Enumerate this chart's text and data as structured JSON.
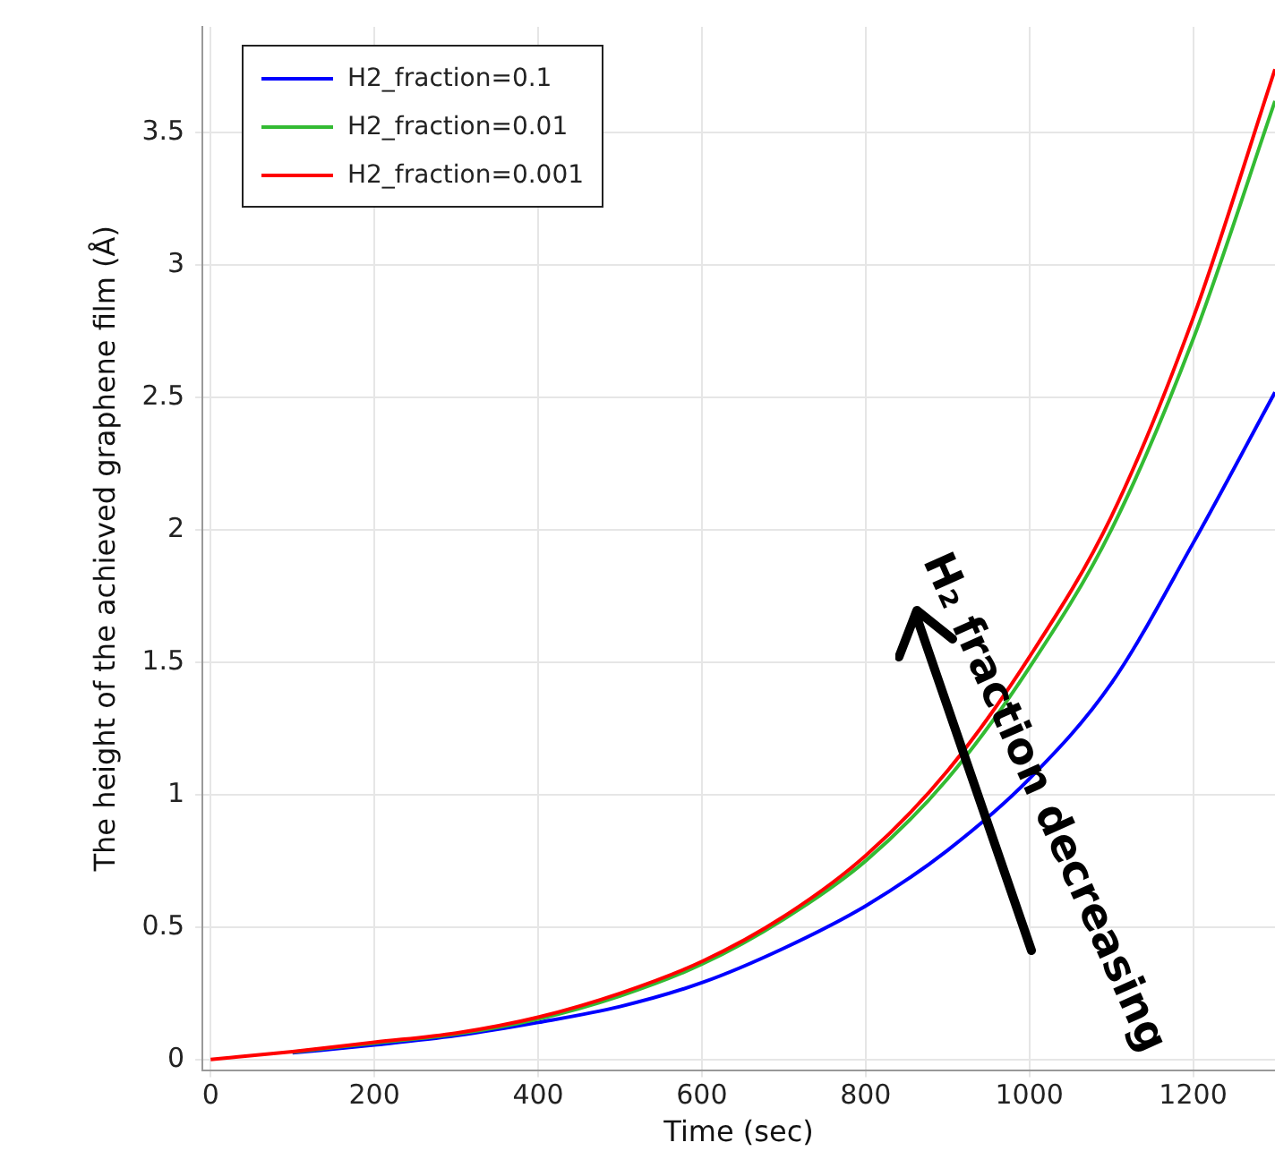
{
  "chart_data": {
    "type": "line",
    "xlabel": "Time (sec)",
    "ylabel": "The height of the achieved graphene film (Å)",
    "x": [
      0,
      100,
      200,
      300,
      400,
      500,
      600,
      700,
      800,
      900,
      1000,
      1100,
      1200,
      1300
    ],
    "series": [
      {
        "name": "H2_fraction=0.1",
        "color": "#0000ff",
        "values": [
          null,
          0.025,
          0.055,
          0.09,
          0.14,
          0.2,
          0.29,
          0.42,
          0.58,
          0.79,
          1.06,
          1.42,
          1.95,
          2.52
        ]
      },
      {
        "name": "H2_fraction=0.01",
        "color": "#33bb33",
        "values": [
          null,
          0.028,
          0.062,
          0.096,
          0.153,
          0.24,
          0.36,
          0.53,
          0.75,
          1.06,
          1.48,
          2.0,
          2.72,
          3.62
        ]
      },
      {
        "name": "H2_fraction=0.001",
        "color": "#ff0000",
        "values": [
          0,
          0.03,
          0.065,
          0.1,
          0.16,
          0.25,
          0.37,
          0.54,
          0.77,
          1.09,
          1.52,
          2.05,
          2.8,
          3.74
        ]
      }
    ],
    "xlim": [
      -10,
      1300
    ],
    "xticks": [
      0,
      200,
      400,
      600,
      800,
      1000,
      1200
    ],
    "ylim": [
      -0.04,
      3.9
    ],
    "yticks": [
      0,
      0.5,
      1,
      1.5,
      2,
      2.5,
      3,
      3.5
    ],
    "grid": true,
    "legend": "top left",
    "marker": "none",
    "line_style": "solid",
    "annotations": [
      "H₂ fraction decreasing"
    ]
  }
}
